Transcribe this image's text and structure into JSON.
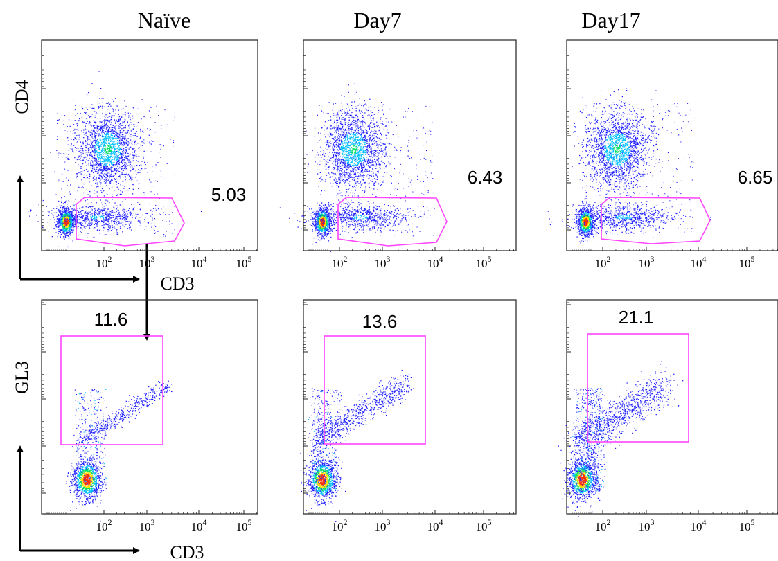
{
  "columns": [
    "Naïve",
    "Day7",
    "Day17"
  ],
  "row_axis_labels": {
    "top_y": "CD4",
    "bottom_y": "GL3",
    "x": "CD3"
  },
  "colors": {
    "gate": "#ff44ff",
    "axis": "#222222",
    "density": [
      "#2222ff",
      "#00c0ff",
      "#00e060",
      "#ffe000",
      "#ff3000"
    ]
  },
  "chart_data": [
    {
      "type": "scatter",
      "row": "CD4 vs CD3",
      "column": "Naïve",
      "xlabel": "CD3",
      "ylabel": "CD4",
      "x_ticks": [
        "10^2",
        "10^3",
        "10^4",
        "10^5"
      ],
      "gate_percent": "5.03"
    },
    {
      "type": "scatter",
      "row": "CD4 vs CD3",
      "column": "Day7",
      "xlabel": "",
      "ylabel": "",
      "x_ticks": [
        "10^2",
        "10^3",
        "10^4",
        "10^5"
      ],
      "gate_percent": "6.43"
    },
    {
      "type": "scatter",
      "row": "CD4 vs CD3",
      "column": "Day17",
      "xlabel": "",
      "ylabel": "",
      "x_ticks": [
        "10^2",
        "10^3",
        "10^4",
        "10^5"
      ],
      "gate_percent": "6.65"
    },
    {
      "type": "scatter",
      "row": "GL3 vs CD3",
      "column": "Naïve",
      "xlabel": "CD3",
      "ylabel": "GL3",
      "x_ticks": [
        "10^2",
        "10^3",
        "10^4",
        "10^5"
      ],
      "gate_percent": "11.6"
    },
    {
      "type": "scatter",
      "row": "GL3 vs CD3",
      "column": "Day7",
      "xlabel": "",
      "ylabel": "",
      "x_ticks": [
        "10^2",
        "10^3",
        "10^4",
        "10^5"
      ],
      "gate_percent": "13.6"
    },
    {
      "type": "scatter",
      "row": "GL3 vs CD3",
      "column": "Day17",
      "xlabel": "",
      "ylabel": "",
      "x_ticks": [
        "10^2",
        "10^3",
        "10^4",
        "10^5"
      ],
      "gate_percent": "21.1"
    }
  ]
}
